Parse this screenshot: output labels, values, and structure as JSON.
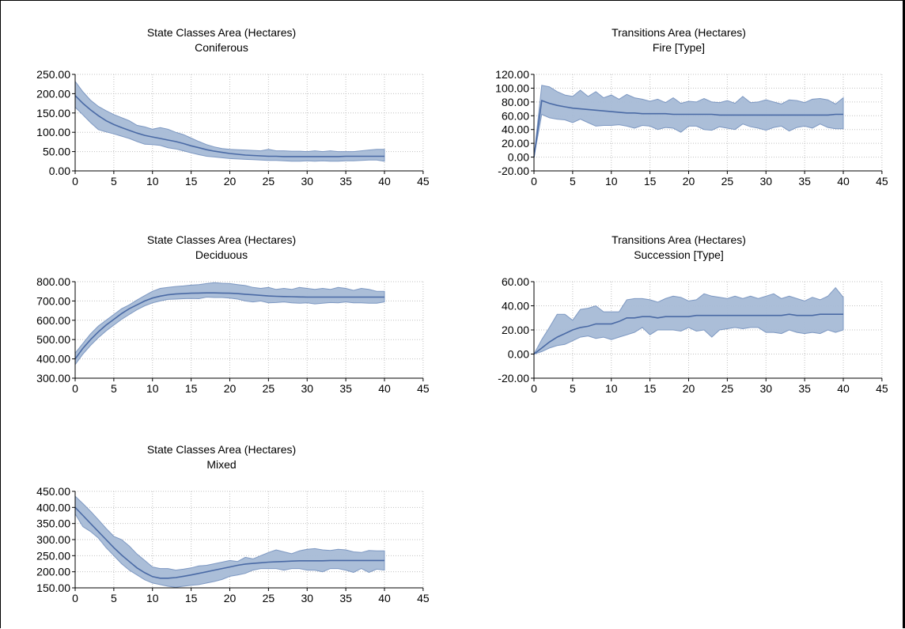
{
  "colors": {
    "band_fill": "#a7bbd6",
    "band_stroke": "#7d98c2",
    "mean_line": "#4a6aa5",
    "grid": "#c0c0c0",
    "axis": "#000000",
    "background": "#ffffff"
  },
  "chart_data": [
    {
      "type": "area",
      "title": "State Classes Area (Hectares)",
      "subtitle": "Coniferous",
      "xlim": [
        0,
        45
      ],
      "ylim": [
        0,
        250
      ],
      "xticks": [
        "0",
        "5",
        "10",
        "15",
        "20",
        "25",
        "30",
        "35",
        "40",
        "45"
      ],
      "yticks": [
        "250.00",
        "200.00",
        "150.00",
        "100.00",
        "50.00",
        "0.00"
      ],
      "grid": true,
      "legend": "none",
      "x": [
        0,
        1,
        2,
        3,
        4,
        5,
        6,
        7,
        8,
        9,
        10,
        11,
        12,
        13,
        14,
        15,
        16,
        17,
        18,
        19,
        20,
        21,
        22,
        23,
        24,
        25,
        26,
        27,
        28,
        29,
        30,
        31,
        32,
        33,
        34,
        35,
        36,
        37,
        38,
        39,
        40
      ],
      "series": [
        {
          "values": [
            195,
            175,
            158,
            143,
            130,
            120,
            112,
            105,
            98,
            92,
            88,
            84,
            80,
            76,
            71,
            65,
            60,
            55,
            51,
            48,
            45,
            43,
            41,
            40,
            39,
            38,
            38,
            37,
            37,
            37,
            37,
            37,
            37,
            37,
            37,
            38,
            38,
            38,
            38,
            38,
            38
          ]
        },
        {
          "values": [
            232,
            205,
            183,
            167,
            156,
            146,
            138,
            130,
            118,
            114,
            108,
            112,
            108,
            100,
            94,
            85,
            76,
            68,
            62,
            58,
            56,
            55,
            54,
            53,
            52,
            56,
            52,
            52,
            51,
            51,
            50,
            52,
            50,
            52,
            50,
            50,
            50,
            52,
            54,
            56,
            56
          ]
        },
        {
          "values": [
            165,
            145,
            125,
            107,
            101,
            96,
            90,
            84,
            76,
            69,
            68,
            66,
            60,
            57,
            52,
            47,
            42,
            38,
            36,
            34,
            32,
            31,
            30,
            29,
            28,
            27,
            27,
            26,
            25,
            25,
            26,
            25,
            26,
            25,
            25,
            26,
            26,
            27,
            28,
            28,
            25
          ]
        }
      ]
    },
    {
      "type": "area",
      "title": "Transitions Area (Hectares)",
      "subtitle": "Fire [Type]",
      "xlim": [
        0,
        45
      ],
      "ylim": [
        -20,
        120
      ],
      "xticks": [
        "0",
        "5",
        "10",
        "15",
        "20",
        "25",
        "30",
        "35",
        "40",
        "45"
      ],
      "yticks": [
        "120.00",
        "100.00",
        "80.00",
        "60.00",
        "40.00",
        "20.00",
        "0.00",
        "-20.00"
      ],
      "grid": true,
      "legend": "none",
      "x": [
        0,
        1,
        2,
        3,
        4,
        5,
        6,
        7,
        8,
        9,
        10,
        11,
        12,
        13,
        14,
        15,
        16,
        17,
        18,
        19,
        20,
        21,
        22,
        23,
        24,
        25,
        26,
        27,
        28,
        29,
        30,
        31,
        32,
        33,
        34,
        35,
        36,
        37,
        38,
        39,
        40
      ],
      "series": [
        {
          "values": [
            0,
            82,
            78,
            75,
            73,
            71,
            70,
            69,
            68,
            67,
            66,
            65,
            64,
            64,
            63,
            63,
            63,
            63,
            62,
            62,
            62,
            62,
            62,
            62,
            61,
            61,
            61,
            61,
            61,
            61,
            61,
            61,
            61,
            61,
            61,
            61,
            61,
            61,
            61,
            62,
            62
          ]
        },
        {
          "values": [
            0,
            104,
            102,
            95,
            90,
            88,
            97,
            88,
            95,
            86,
            90,
            84,
            91,
            86,
            84,
            81,
            84,
            79,
            86,
            78,
            81,
            80,
            85,
            80,
            79,
            82,
            78,
            88,
            79,
            80,
            83,
            80,
            77,
            83,
            82,
            79,
            84,
            85,
            83,
            77,
            86
          ]
        },
        {
          "values": [
            0,
            62,
            57,
            55,
            54,
            50,
            55,
            50,
            45,
            46,
            46,
            47,
            45,
            42,
            46,
            45,
            40,
            43,
            42,
            36,
            45,
            45,
            40,
            39,
            44,
            42,
            40,
            48,
            44,
            42,
            39,
            43,
            45,
            38,
            43,
            45,
            42,
            48,
            43,
            41,
            41
          ]
        }
      ]
    },
    {
      "type": "area",
      "title": "State Classes Area (Hectares)",
      "subtitle": "Deciduous",
      "xlim": [
        0,
        45
      ],
      "ylim": [
        300,
        800
      ],
      "xticks": [
        "0",
        "5",
        "10",
        "15",
        "20",
        "25",
        "30",
        "35",
        "40",
        "45"
      ],
      "yticks": [
        "800.00",
        "700.00",
        "600.00",
        "500.00",
        "400.00",
        "300.00"
      ],
      "grid": true,
      "legend": "none",
      "x": [
        0,
        1,
        2,
        3,
        4,
        5,
        6,
        7,
        8,
        9,
        10,
        11,
        12,
        13,
        14,
        15,
        16,
        17,
        18,
        19,
        20,
        21,
        22,
        23,
        24,
        25,
        26,
        27,
        28,
        29,
        30,
        31,
        32,
        33,
        34,
        35,
        36,
        37,
        38,
        39,
        40
      ],
      "series": [
        {
          "values": [
            400,
            455,
            500,
            540,
            575,
            605,
            635,
            660,
            680,
            700,
            715,
            725,
            732,
            736,
            738,
            740,
            741,
            742,
            742,
            741,
            740,
            738,
            735,
            732,
            729,
            726,
            724,
            723,
            722,
            721,
            720,
            720,
            720,
            720,
            720,
            720,
            720,
            720,
            720,
            720,
            720
          ]
        },
        {
          "values": [
            430,
            480,
            530,
            570,
            600,
            630,
            660,
            680,
            705,
            728,
            750,
            765,
            770,
            775,
            778,
            782,
            785,
            790,
            795,
            792,
            790,
            785,
            780,
            770,
            765,
            770,
            760,
            765,
            760,
            770,
            765,
            760,
            765,
            760,
            770,
            765,
            755,
            765,
            760,
            750,
            750
          ]
        },
        {
          "values": [
            370,
            425,
            470,
            510,
            545,
            575,
            605,
            630,
            655,
            675,
            690,
            700,
            708,
            710,
            712,
            713,
            712,
            720,
            718,
            718,
            715,
            710,
            700,
            695,
            700,
            690,
            692,
            695,
            690,
            688,
            690,
            685,
            688,
            692,
            690,
            695,
            690,
            690,
            688,
            688,
            695
          ]
        }
      ]
    },
    {
      "type": "area",
      "title": "Transitions Area (Hectares)",
      "subtitle": "Succession [Type]",
      "xlim": [
        0,
        45
      ],
      "ylim": [
        -20,
        60
      ],
      "xticks": [
        "0",
        "5",
        "10",
        "15",
        "20",
        "25",
        "30",
        "35",
        "40",
        "45"
      ],
      "yticks": [
        "60.00",
        "40.00",
        "20.00",
        "0.00",
        "-20.00"
      ],
      "grid": true,
      "legend": "none",
      "x": [
        0,
        1,
        2,
        3,
        4,
        5,
        6,
        7,
        8,
        9,
        10,
        11,
        12,
        13,
        14,
        15,
        16,
        17,
        18,
        19,
        20,
        21,
        22,
        23,
        24,
        25,
        26,
        27,
        28,
        29,
        30,
        31,
        32,
        33,
        34,
        35,
        36,
        37,
        38,
        39,
        40
      ],
      "series": [
        {
          "values": [
            0,
            5,
            10,
            14,
            17,
            20,
            22,
            23,
            25,
            25,
            25,
            27,
            30,
            30,
            31,
            31,
            30,
            31,
            31,
            31,
            31,
            32,
            32,
            32,
            32,
            32,
            32,
            32,
            32,
            32,
            32,
            32,
            32,
            33,
            32,
            32,
            32,
            33,
            33,
            33,
            33
          ]
        },
        {
          "values": [
            0,
            12,
            22,
            33,
            33,
            28,
            37,
            38,
            40,
            35,
            35,
            35,
            45,
            46,
            46,
            45,
            43,
            46,
            48,
            47,
            44,
            45,
            50,
            48,
            47,
            46,
            48,
            46,
            48,
            46,
            48,
            50,
            46,
            48,
            46,
            44,
            47,
            45,
            48,
            55,
            47
          ]
        },
        {
          "values": [
            0,
            2,
            5,
            7,
            8,
            11,
            14,
            15,
            13,
            14,
            12,
            14,
            16,
            18,
            22,
            16,
            20,
            20,
            20,
            19,
            22,
            19,
            20,
            14,
            20,
            21,
            22,
            21,
            22,
            22,
            18,
            18,
            17,
            20,
            18,
            17,
            18,
            17,
            20,
            18,
            20
          ]
        }
      ]
    },
    {
      "type": "area",
      "title": "State Classes Area (Hectares)",
      "subtitle": "Mixed",
      "xlim": [
        0,
        45
      ],
      "ylim": [
        150,
        450
      ],
      "xticks": [
        "0",
        "5",
        "10",
        "15",
        "20",
        "25",
        "30",
        "35",
        "40",
        "45"
      ],
      "yticks": [
        "450.00",
        "400.00",
        "350.00",
        "300.00",
        "250.00",
        "200.00",
        "150.00"
      ],
      "grid": true,
      "legend": "none",
      "x": [
        0,
        1,
        2,
        3,
        4,
        5,
        6,
        7,
        8,
        9,
        10,
        11,
        12,
        13,
        14,
        15,
        16,
        17,
        18,
        19,
        20,
        21,
        22,
        23,
        24,
        25,
        26,
        27,
        28,
        29,
        30,
        31,
        32,
        33,
        34,
        35,
        36,
        37,
        38,
        39,
        40
      ],
      "series": [
        {
          "values": [
            400,
            375,
            350,
            325,
            300,
            275,
            252,
            232,
            212,
            197,
            185,
            180,
            180,
            182,
            186,
            190,
            195,
            200,
            205,
            210,
            215,
            220,
            224,
            226,
            228,
            230,
            231,
            232,
            233,
            234,
            234,
            234,
            234,
            235,
            235,
            235,
            235,
            235,
            235,
            235,
            235
          ]
        },
        {
          "values": [
            435,
            412,
            388,
            362,
            335,
            310,
            300,
            280,
            255,
            235,
            215,
            210,
            210,
            205,
            208,
            212,
            218,
            220,
            225,
            230,
            235,
            232,
            245,
            240,
            250,
            260,
            268,
            262,
            256,
            265,
            270,
            272,
            268,
            266,
            270,
            268,
            262,
            260,
            266,
            265,
            265
          ]
        },
        {
          "values": [
            380,
            340,
            325,
            305,
            275,
            250,
            225,
            205,
            190,
            175,
            165,
            160,
            155,
            152,
            155,
            158,
            160,
            165,
            170,
            176,
            186,
            190,
            195,
            205,
            210,
            210,
            210,
            205,
            210,
            210,
            205,
            205,
            200,
            210,
            210,
            205,
            198,
            210,
            198,
            208,
            205
          ]
        }
      ]
    }
  ]
}
